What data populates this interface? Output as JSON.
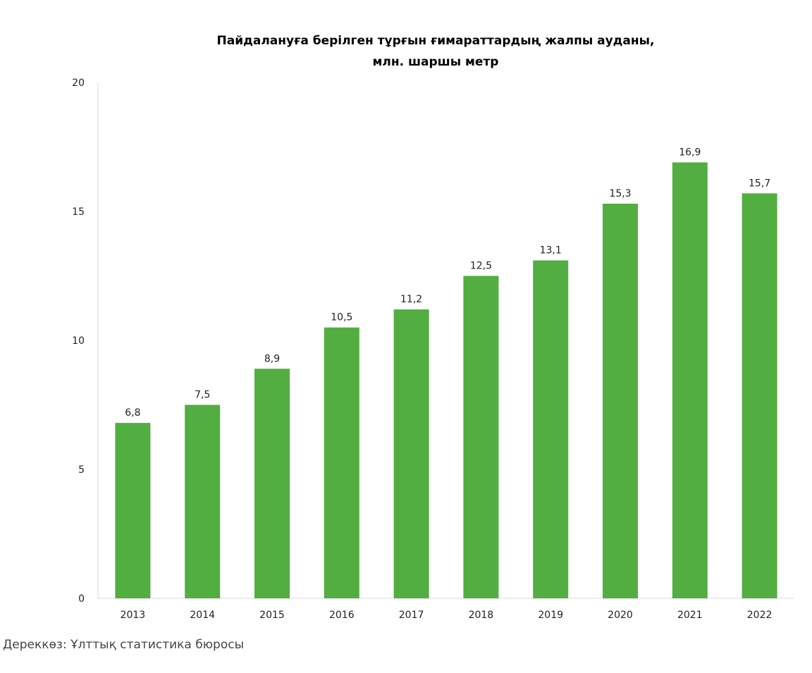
{
  "chart_data": {
    "type": "bar",
    "title": [
      "Пайдалануға берілген тұрғын ғимараттардың жалпы ауданы,",
      "млн. шаршы метр"
    ],
    "categories": [
      "2013",
      "2014",
      "2015",
      "2016",
      "2017",
      "2018",
      "2019",
      "2020",
      "2021",
      "2022"
    ],
    "values": [
      6.8,
      7.5,
      8.9,
      10.5,
      11.2,
      12.5,
      13.1,
      15.3,
      16.9,
      15.7
    ],
    "data_labels": [
      "6,8",
      "7,5",
      "8,9",
      "10,5",
      "11,2",
      "12,5",
      "13,1",
      "15,3",
      "16,9",
      "15,7"
    ],
    "yticks": [
      "0",
      "5",
      "10",
      "15",
      "20"
    ],
    "ylim": [
      0,
      20
    ],
    "grid": false,
    "legend": "none",
    "bar_color": "#52ae41"
  },
  "source": "Дереккөз: Ұлттық статистика бюросы"
}
